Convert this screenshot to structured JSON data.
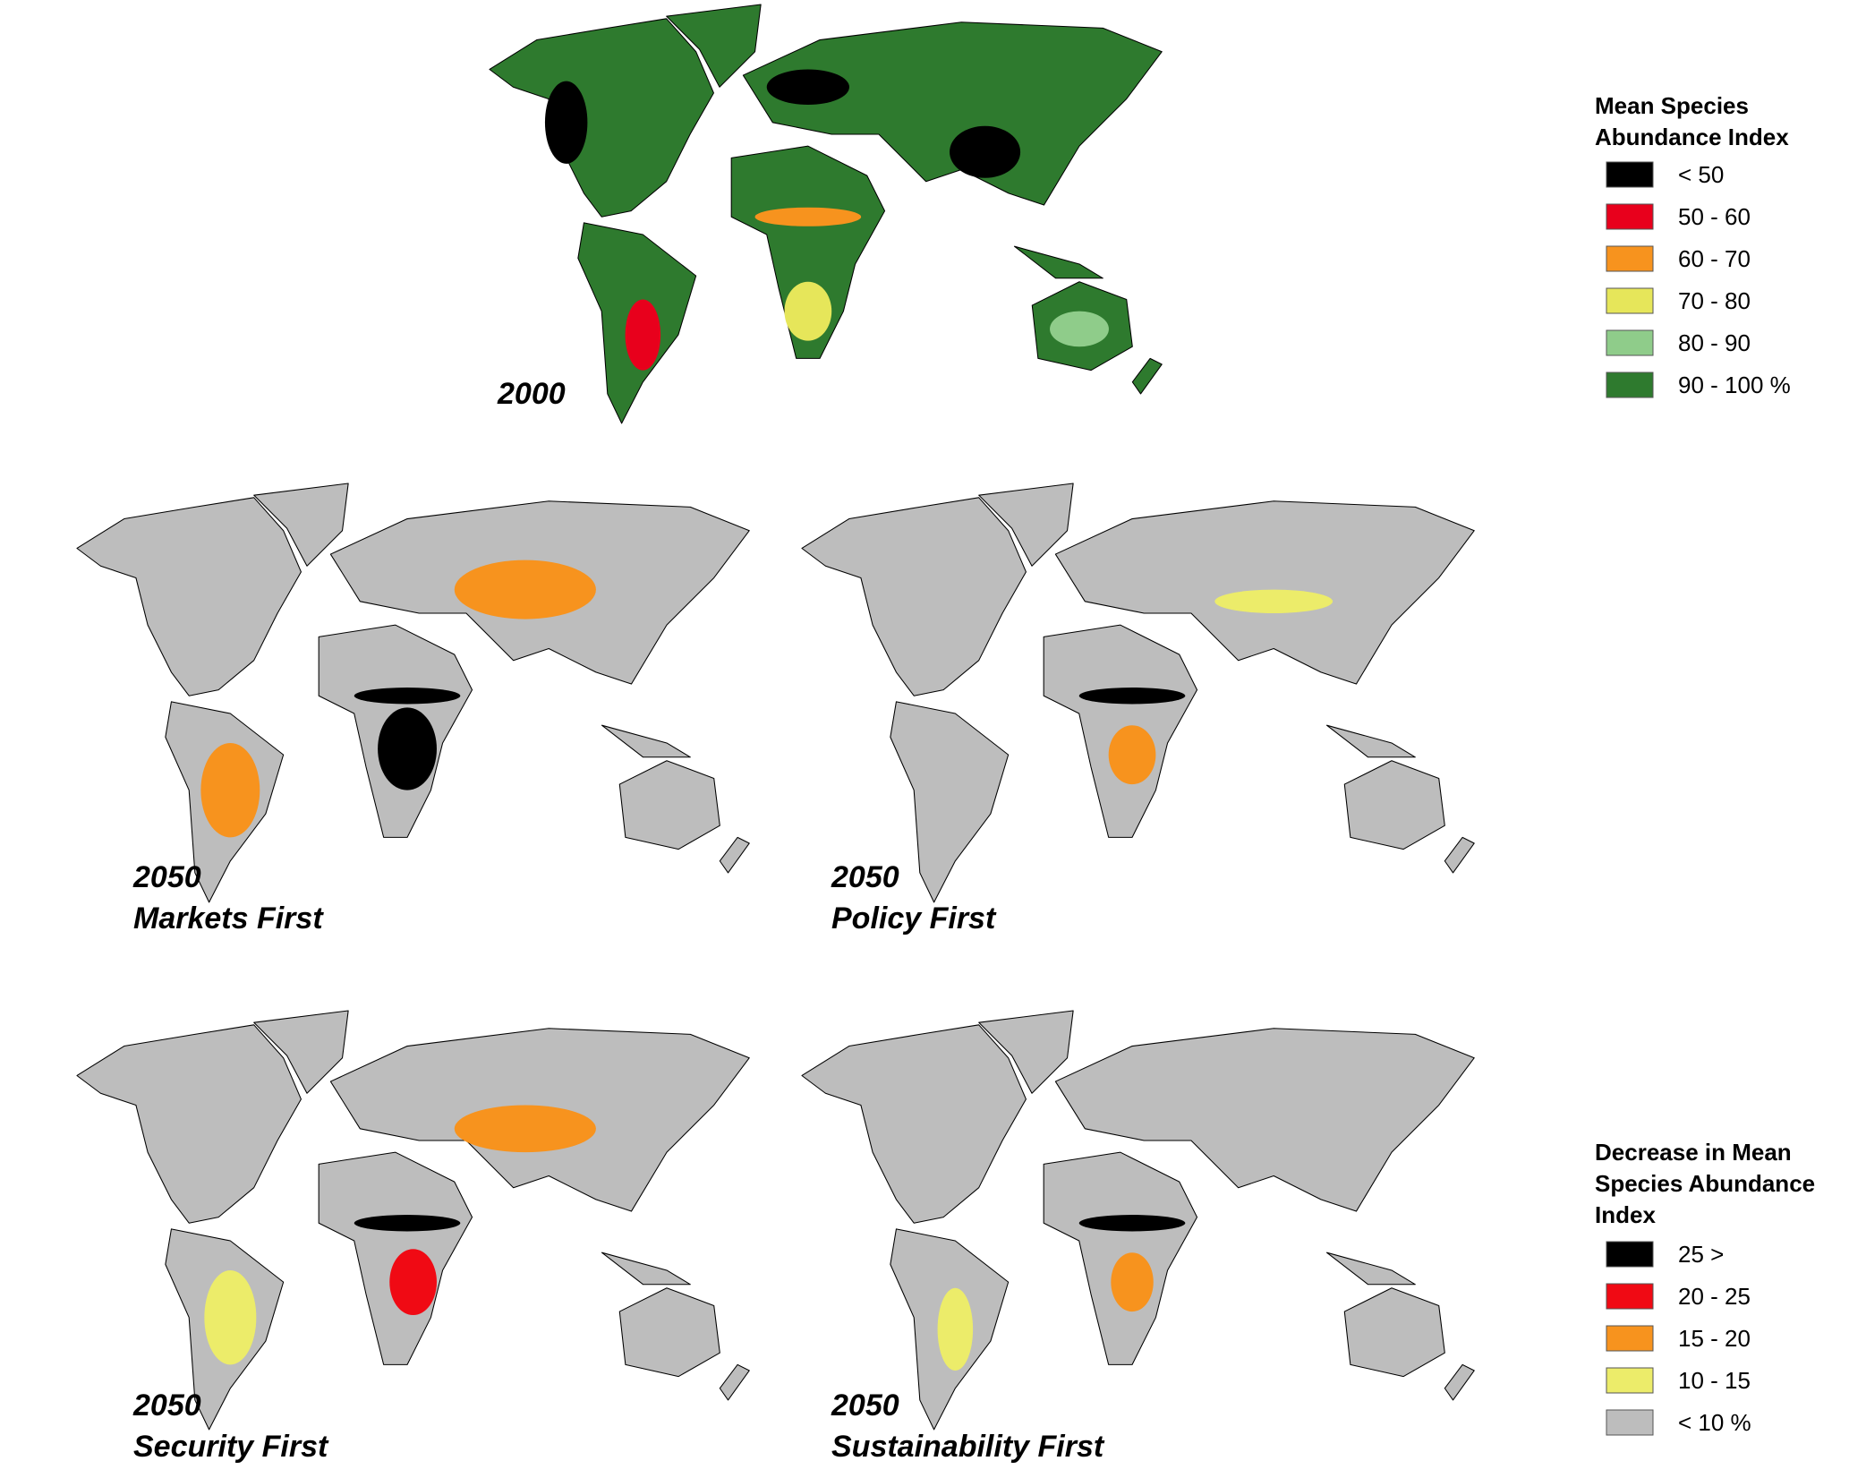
{
  "maps": [
    {
      "year": "2000"
    },
    {
      "year": "2050",
      "scenario": "Markets First"
    },
    {
      "year": "2050",
      "scenario": "Policy First"
    },
    {
      "year": "2050",
      "scenario": "Security First"
    },
    {
      "year": "2050",
      "scenario": "Sustainability First"
    }
  ],
  "legend_current": {
    "title": [
      "Mean Species",
      "Abundance Index"
    ],
    "items": [
      {
        "color": "#000000",
        "label": "< 50"
      },
      {
        "color": "#e8001c",
        "label": "50 - 60"
      },
      {
        "color": "#f7931e",
        "label": "60 - 70"
      },
      {
        "color": "#e6e65a",
        "label": "70 - 80"
      },
      {
        "color": "#8fcc8a",
        "label": "80 - 90"
      },
      {
        "color": "#2e7a2e",
        "label": "90 - 100 %"
      }
    ]
  },
  "legend_decrease": {
    "title": [
      "Decrease in Mean",
      "Species Abundance",
      "Index"
    ],
    "items": [
      {
        "color": "#000000",
        "label": "25 >"
      },
      {
        "color": "#f00a14",
        "label": "20 - 25"
      },
      {
        "color": "#f7931e",
        "label": "15 - 20"
      },
      {
        "color": "#ecec6a",
        "label": "10 - 15"
      },
      {
        "color": "#bdbdbd",
        "label": "< 10 %"
      }
    ]
  }
}
